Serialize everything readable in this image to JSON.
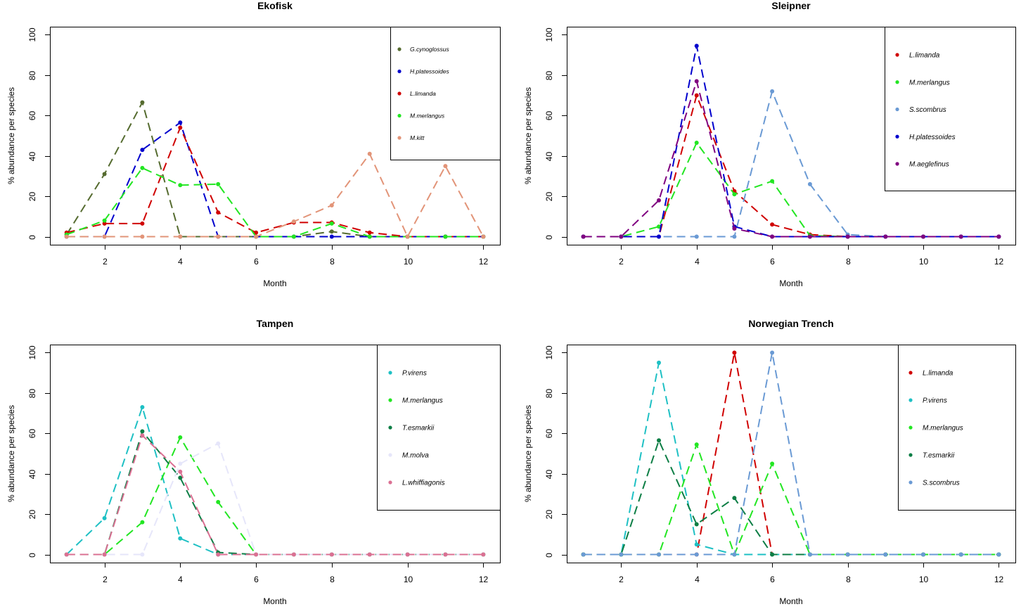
{
  "chart_data": [
    {
      "type": "line",
      "title": "Ekofisk",
      "xlabel": "Month",
      "ylabel": "% abundance per species",
      "x": [
        1,
        2,
        3,
        4,
        5,
        6,
        7,
        8,
        9,
        10,
        11,
        12
      ],
      "xlim": [
        1,
        12
      ],
      "ylim": [
        0,
        100
      ],
      "xticks": [
        2,
        4,
        6,
        8,
        10,
        12
      ],
      "yticks": [
        0,
        20,
        40,
        60,
        80,
        100
      ],
      "grid": false,
      "legend": "top-right",
      "series": [
        {
          "name": "G.cynoglossus",
          "color": "#556B2F",
          "values": [
            1,
            31,
            66.5,
            0,
            0,
            0,
            0,
            2.5,
            0,
            0,
            0,
            0
          ]
        },
        {
          "name": "H.platessoides",
          "color": "#0000CD",
          "values": [
            0,
            0,
            43,
            56.5,
            0,
            0,
            0,
            0,
            0,
            0,
            0,
            0
          ]
        },
        {
          "name": "L.limanda",
          "color": "#D00000",
          "values": [
            2,
            6.5,
            6.5,
            54,
            12,
            2,
            7,
            7,
            2,
            0,
            0,
            0
          ]
        },
        {
          "name": "M.merlangus",
          "color": "#22E622",
          "values": [
            1,
            8,
            34,
            25.5,
            26,
            0,
            0,
            6.5,
            0,
            0,
            0,
            0
          ]
        },
        {
          "name": "M.kitt",
          "color": "#E29478",
          "values": [
            0,
            0,
            0,
            0,
            0,
            0,
            7.5,
            15.5,
            41,
            0,
            35,
            0
          ]
        }
      ]
    },
    {
      "type": "line",
      "title": "Sleipner",
      "xlabel": "Month",
      "ylabel": "% abundance per species",
      "x": [
        1,
        2,
        3,
        4,
        5,
        6,
        7,
        8,
        9,
        10,
        11,
        12
      ],
      "xlim": [
        1,
        12
      ],
      "ylim": [
        0,
        100
      ],
      "xticks": [
        2,
        4,
        6,
        8,
        10,
        12
      ],
      "yticks": [
        0,
        20,
        40,
        60,
        80,
        100
      ],
      "grid": false,
      "legend": "top-right",
      "series": [
        {
          "name": "L.limanda",
          "color": "#D00000",
          "values": [
            0,
            0,
            0,
            70,
            22.5,
            6,
            1,
            0,
            0,
            0,
            0,
            0
          ]
        },
        {
          "name": "M.merlangus",
          "color": "#22E622",
          "values": [
            0,
            0,
            5,
            46.5,
            21,
            27.5,
            0.5,
            0,
            0,
            0,
            0,
            0
          ]
        },
        {
          "name": "S.scombrus",
          "color": "#6A9AD4",
          "values": [
            0,
            0,
            0,
            0,
            0,
            72,
            26,
            1,
            0,
            0,
            0,
            0
          ]
        },
        {
          "name": "H.platessoides",
          "color": "#0000CD",
          "values": [
            0,
            0,
            0,
            94.5,
            5,
            0,
            0,
            0,
            0,
            0,
            0,
            0
          ]
        },
        {
          "name": "M.aeglefinus",
          "color": "#800080",
          "values": [
            0,
            0,
            18,
            77,
            4,
            0,
            0,
            0,
            0,
            0,
            0,
            0
          ]
        }
      ]
    },
    {
      "type": "line",
      "title": "Tampen",
      "xlabel": "Month",
      "ylabel": "% abundance per species",
      "x": [
        1,
        2,
        3,
        4,
        5,
        6,
        7,
        8,
        9,
        10,
        11,
        12
      ],
      "xlim": [
        1,
        12
      ],
      "ylim": [
        0,
        100
      ],
      "xticks": [
        2,
        4,
        6,
        8,
        10,
        12
      ],
      "yticks": [
        0,
        20,
        40,
        60,
        80,
        100
      ],
      "grid": false,
      "legend": "top-right",
      "series": [
        {
          "name": "P.virens",
          "color": "#1EC0C4",
          "values": [
            0,
            18,
            73,
            8,
            0,
            0,
            0,
            0,
            0,
            0,
            0,
            0
          ]
        },
        {
          "name": "M.merlangus",
          "color": "#22E622",
          "values": [
            0,
            0,
            16,
            58,
            26,
            0,
            0,
            0,
            0,
            0,
            0,
            0
          ]
        },
        {
          "name": "T.esmarkii",
          "color": "#0D7E45",
          "values": [
            0,
            0,
            61,
            38,
            1,
            0,
            0,
            0,
            0,
            0,
            0,
            0
          ]
        },
        {
          "name": "M.molva",
          "color": "#E6E6FA",
          "values": [
            0,
            0,
            0,
            45,
            55,
            0,
            0,
            0,
            0,
            0,
            0,
            0
          ]
        },
        {
          "name": "L.whiffiagonis",
          "color": "#DB7093",
          "values": [
            0,
            0,
            59,
            41,
            0,
            0,
            0,
            0,
            0,
            0,
            0,
            0
          ]
        }
      ]
    },
    {
      "type": "line",
      "title": "Norwegian Trench",
      "xlabel": "Month",
      "ylabel": "% abundance per species",
      "x": [
        1,
        2,
        3,
        4,
        5,
        6,
        7,
        8,
        9,
        10,
        11,
        12
      ],
      "xlim": [
        1,
        12
      ],
      "ylim": [
        0,
        100
      ],
      "xticks": [
        2,
        4,
        6,
        8,
        10,
        12
      ],
      "yticks": [
        0,
        20,
        40,
        60,
        80,
        100
      ],
      "grid": false,
      "legend": "top-right",
      "series": [
        {
          "name": "L.limanda",
          "color": "#D00000",
          "values": [
            0,
            0,
            0,
            0,
            100,
            0,
            0,
            0,
            0,
            0,
            0,
            0
          ]
        },
        {
          "name": "P.virens",
          "color": "#1EC0C4",
          "values": [
            0,
            0,
            95,
            5,
            0,
            0,
            0,
            0,
            0,
            0,
            0,
            0
          ]
        },
        {
          "name": "M.merlangus",
          "color": "#22E622",
          "values": [
            0,
            0,
            0,
            54.5,
            0,
            45,
            0,
            0,
            0,
            0,
            0,
            0
          ]
        },
        {
          "name": "T.esmarkii",
          "color": "#0D7E45",
          "values": [
            0,
            0,
            56.5,
            15,
            28,
            0,
            0,
            0,
            0,
            0,
            0,
            0
          ]
        },
        {
          "name": "S.scombrus",
          "color": "#6A9AD4",
          "values": [
            0,
            0,
            0,
            0,
            0,
            100,
            0,
            0,
            0,
            0,
            0,
            0
          ]
        }
      ]
    }
  ]
}
